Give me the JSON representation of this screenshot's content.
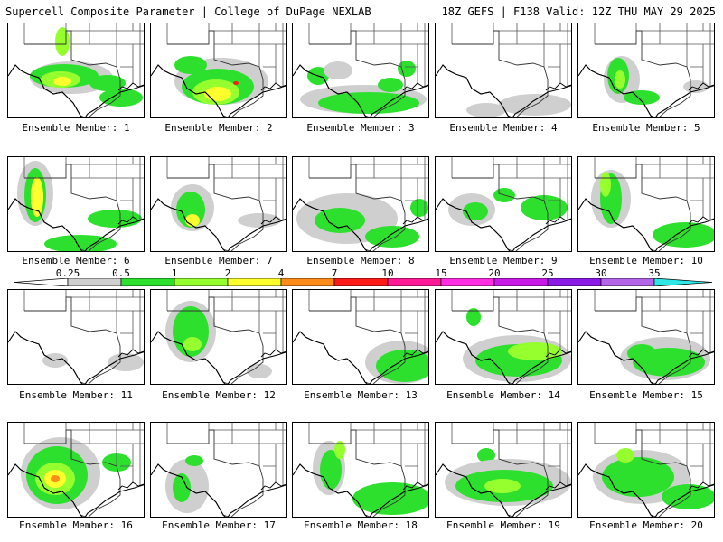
{
  "header": {
    "left": "Supercell Composite Parameter | College of DuPage NEXLAB",
    "right": "18Z GEFS | F138 Valid: 12Z THU MAY 29 2025"
  },
  "legend": {
    "ticks": [
      "0.25",
      "0.5",
      "1",
      "2",
      "4",
      "7",
      "10",
      "15",
      "20",
      "25",
      "30",
      "35"
    ],
    "colors": [
      "#ffffff",
      "#cfcfcf",
      "#2ee02e",
      "#96ff2e",
      "#ffff2e",
      "#ff8c1a",
      "#ff1a1a",
      "#ff1a96",
      "#ff2ee0",
      "#c81ae6",
      "#8c1ae6",
      "#b464e6",
      "#2ee6e6"
    ]
  },
  "members": [
    "Ensemble Member: 1",
    "Ensemble Member: 2",
    "Ensemble Member: 3",
    "Ensemble Member: 4",
    "Ensemble Member: 5",
    "Ensemble Member: 6",
    "Ensemble Member: 7",
    "Ensemble Member: 8",
    "Ensemble Member: 9",
    "Ensemble Member: 10",
    "Ensemble Member: 11",
    "Ensemble Member: 12",
    "Ensemble Member: 13",
    "Ensemble Member: 14",
    "Ensemble Member: 15",
    "Ensemble Member: 16",
    "Ensemble Member: 17",
    "Ensemble Member: 18",
    "Ensemble Member: 19",
    "Ensemble Member: 20"
  ],
  "colors": {
    "border": "#000000",
    "gray": "#cfcfcf",
    "green": "#2ee02e",
    "lime": "#96ff2e",
    "yellow": "#ffff2e",
    "orange": "#ff8c1a",
    "red": "#ff1a1a"
  }
}
